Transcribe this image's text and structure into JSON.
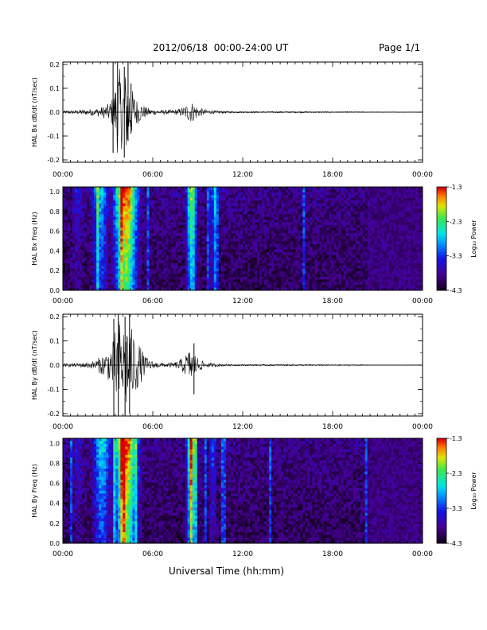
{
  "header": {
    "title": "2012/06/18  00:00-24:00 UT",
    "page": "Page 1/1"
  },
  "footer": {
    "xlabel": "Universal Time (hh:mm)"
  },
  "colors": {
    "trace": "#000000",
    "frame": "#000000",
    "background": "#ffffff"
  },
  "chart_data": [
    {
      "type": "line",
      "ylabel": "HAL Bx dB/dt (nT/sec)",
      "x_ticks": [
        "00:00",
        "06:00",
        "12:00",
        "18:00",
        "00:00"
      ],
      "x_range_hours": [
        0,
        24
      ],
      "y_ticks": [
        "0.2",
        "0.1",
        "0.0",
        "-0.1",
        "-0.2"
      ],
      "ylim": [
        -0.21,
        0.21
      ],
      "series": [
        {
          "envelope": {
            "x_hours": [
              0,
              1,
              2,
              2.5,
              3,
              3.3,
              3.5,
              3.7,
              4,
              4.3,
              4.6,
              5,
              5.3,
              5.6,
              6,
              6.5,
              7,
              7.5,
              8,
              8.4,
              8.6,
              8.8,
              9.1,
              9.5,
              10,
              11,
              12,
              14,
              16,
              18,
              20,
              20.5,
              24
            ],
            "amplitude": [
              0.006,
              0.009,
              0.014,
              0.02,
              0.035,
              0.06,
              0.12,
              0.2,
              0.14,
              0.2,
              0.1,
              0.05,
              0.035,
              0.02,
              0.012,
              0.01,
              0.009,
              0.01,
              0.02,
              0.04,
              0.045,
              0.035,
              0.02,
              0.01,
              0.007,
              0.004,
              0.003,
              0.003,
              0.003,
              0.002,
              0.002,
              0.001,
              0.001
            ]
          },
          "spikes": [
            {
              "x_hours": 3.35,
              "min": -0.17,
              "max": 0.21
            },
            {
              "x_hours": 3.65,
              "min": -0.1,
              "max": 0.21
            },
            {
              "x_hours": 4.1,
              "min": -0.19,
              "max": 0.19
            },
            {
              "x_hours": 4.35,
              "min": -0.12,
              "max": 0.21
            },
            {
              "x_hours": 4.55,
              "min": -0.09,
              "max": 0.12
            }
          ]
        }
      ]
    },
    {
      "type": "heatmap",
      "ylabel": "HAL Bx Freq (Hz)",
      "x_ticks": [
        "00:00",
        "06:00",
        "12:00",
        "18:00",
        "00:00"
      ],
      "x_range_hours": [
        0,
        24
      ],
      "y_ticks": [
        "1.0",
        "0.8",
        "0.6",
        "0.4",
        "0.2",
        "0.0"
      ],
      "ylim": [
        0,
        1.05
      ],
      "colorbar": {
        "label": "Log₁₀ Power",
        "ticks": [
          "-1.3",
          "-2.3",
          "-3.3",
          "-4.3"
        ],
        "range": [
          -4.3,
          -1.3
        ]
      },
      "activity_bands": [
        {
          "center_hours": 4.2,
          "width_hours": 1.6,
          "level": 0.95
        },
        {
          "center_hours": 8.6,
          "width_hours": 0.7,
          "level": 0.75
        },
        {
          "center_hours": 2.5,
          "width_hours": 1.2,
          "level": 0.5
        },
        {
          "center_hours": 10.0,
          "width_hours": 0.6,
          "level": 0.35
        },
        {
          "center_hours": 1.0,
          "width_hours": 1.0,
          "level": 0.25
        }
      ],
      "quiet_after_hours": 20.3
    },
    {
      "type": "line",
      "ylabel": "HAL By dB/dt (nT/sec)",
      "x_ticks": [
        "00:00",
        "06:00",
        "12:00",
        "18:00",
        "00:00"
      ],
      "x_range_hours": [
        0,
        24
      ],
      "y_ticks": [
        "0.2",
        "0.1",
        "0.0",
        "-0.1",
        "-0.2"
      ],
      "ylim": [
        -0.21,
        0.21
      ],
      "series": [
        {
          "envelope": {
            "x_hours": [
              0,
              1,
              2,
              2.5,
              3,
              3.3,
              3.5,
              3.7,
              4,
              4.3,
              4.6,
              5,
              5.3,
              5.6,
              6,
              6.5,
              7,
              7.5,
              8,
              8.4,
              8.6,
              8.8,
              9.1,
              9.5,
              10,
              11,
              12,
              14,
              16,
              18,
              20,
              20.5,
              24
            ],
            "amplitude": [
              0.006,
              0.009,
              0.015,
              0.035,
              0.06,
              0.09,
              0.15,
              0.2,
              0.16,
              0.2,
              0.15,
              0.1,
              0.06,
              0.03,
              0.015,
              0.01,
              0.009,
              0.012,
              0.03,
              0.06,
              0.07,
              0.05,
              0.025,
              0.012,
              0.007,
              0.004,
              0.003,
              0.003,
              0.003,
              0.002,
              0.002,
              0.001,
              0.001
            ]
          },
          "spikes": [
            {
              "x_hours": 3.4,
              "min": -0.21,
              "max": 0.19
            },
            {
              "x_hours": 3.7,
              "min": -0.21,
              "max": 0.21
            },
            {
              "x_hours": 4.15,
              "min": -0.21,
              "max": 0.2
            },
            {
              "x_hours": 4.45,
              "min": -0.2,
              "max": 0.21
            },
            {
              "x_hours": 8.75,
              "min": -0.12,
              "max": 0.09
            }
          ]
        }
      ]
    },
    {
      "type": "heatmap",
      "ylabel": "HAL By Freq (Hz)",
      "x_ticks": [
        "00:00",
        "06:00",
        "12:00",
        "18:00",
        "00:00"
      ],
      "x_range_hours": [
        0,
        24
      ],
      "y_ticks": [
        "1.0",
        "0.8",
        "0.6",
        "0.4",
        "0.2",
        "0.0"
      ],
      "ylim": [
        0,
        1.05
      ],
      "colorbar": {
        "label": "Log₁₀ Power",
        "ticks": [
          "-1.3",
          "-2.3",
          "-3.3",
          "-4.3"
        ],
        "range": [
          -4.3,
          -1.3
        ]
      },
      "activity_bands": [
        {
          "center_hours": 4.2,
          "width_hours": 1.6,
          "level": 0.95
        },
        {
          "center_hours": 8.6,
          "width_hours": 0.7,
          "level": 0.8
        },
        {
          "center_hours": 2.6,
          "width_hours": 1.2,
          "level": 0.55
        },
        {
          "center_hours": 10.0,
          "width_hours": 0.6,
          "level": 0.35
        },
        {
          "center_hours": 1.0,
          "width_hours": 1.0,
          "level": 0.25
        }
      ],
      "quiet_after_hours": 20.3
    }
  ]
}
